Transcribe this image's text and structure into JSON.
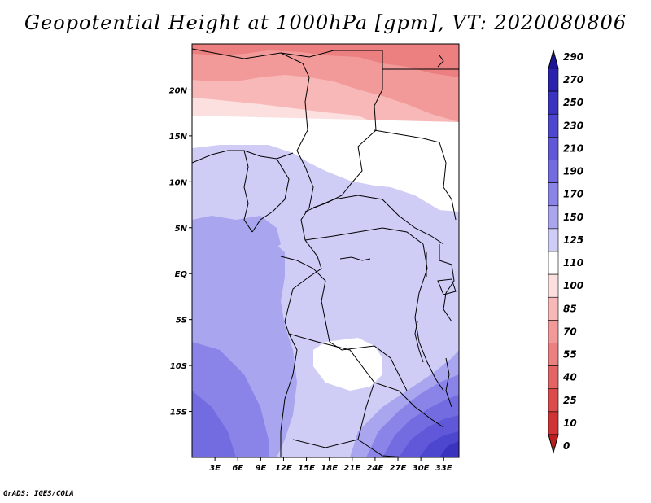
{
  "title": "Geopotential Height at 1000hPa [gpm], VT: 2020080806",
  "credit": "GrADS: IGES/COLA",
  "map": {
    "variable": "Geopotential Height",
    "level": "1000hPa",
    "units": "gpm",
    "valid_time": "2020080806",
    "lon_range": [
      0,
      35
    ],
    "lat_range": [
      -20,
      25
    ],
    "x_ticks": [
      "3E",
      "6E",
      "9E",
      "12E",
      "15E",
      "18E",
      "21E",
      "24E",
      "27E",
      "30E",
      "33E"
    ],
    "x_tick_values": [
      3,
      6,
      9,
      12,
      15,
      18,
      21,
      24,
      27,
      30,
      33
    ],
    "y_ticks": [
      "20N",
      "15N",
      "10N",
      "5N",
      "EQ",
      "5S",
      "10S",
      "15S"
    ],
    "y_tick_values": [
      20,
      15,
      10,
      5,
      0,
      -5,
      -10,
      -15
    ]
  },
  "colorbar": {
    "labels": [
      "290",
      "270",
      "250",
      "230",
      "210",
      "190",
      "170",
      "150",
      "125",
      "110",
      "100",
      "85",
      "70",
      "55",
      "40",
      "25",
      "10",
      "0"
    ],
    "colors": [
      "#1c1596",
      "#2a22ad",
      "#3a33c0",
      "#4d46cf",
      "#6058d8",
      "#736ce0",
      "#8a84e8",
      "#a9a5ef",
      "#cfcdf6",
      "#ffffff",
      "#fce0e0",
      "#f8b8b8",
      "#f29a9a",
      "#ec8080",
      "#e46464",
      "#dc4a4a",
      "#cf3333",
      "#b82020"
    ]
  }
}
